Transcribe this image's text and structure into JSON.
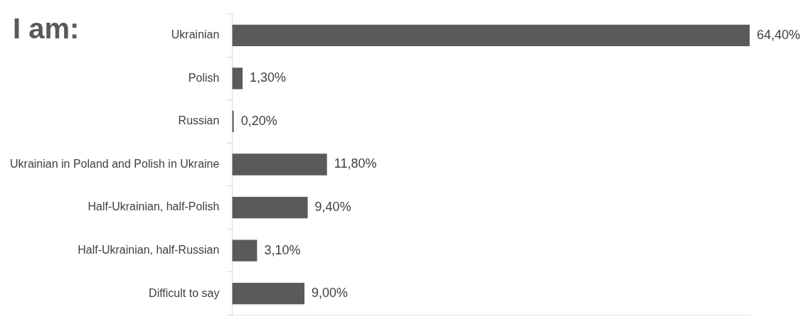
{
  "chart_data": {
    "type": "bar",
    "orientation": "horizontal",
    "title": "I am:",
    "relative": false,
    "categories": [
      "Ukrainian",
      "Polish",
      "Russian",
      "Ukrainian in Poland and Polish in Ukraine",
      "Half-Ukrainian, half-Polish",
      "Half-Ukrainian, half-Russian",
      "Difficult to say"
    ],
    "values": [
      64.4,
      1.3,
      0.2,
      11.8,
      9.4,
      3.1,
      9.0
    ],
    "color": "#5a5a5a",
    "value_labels": [
      "64,40%",
      "1,30%",
      "0,20%",
      "11,80%",
      "9,40%",
      "3,10%",
      "9,00%"
    ]
  }
}
